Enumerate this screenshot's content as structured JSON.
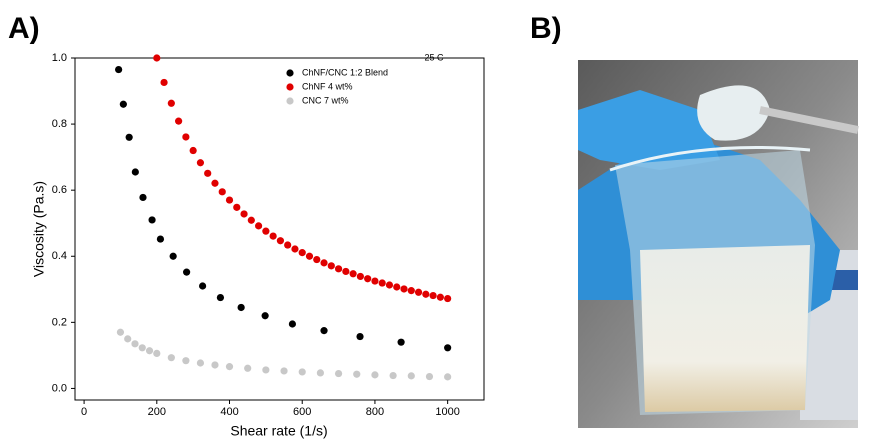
{
  "chart_data": {
    "type": "scatter",
    "panel_label": "A)",
    "photo_label": "B)",
    "x_label": "Shear rate (1/s)",
    "y_label": "Viscosity (Pa.s)",
    "annotation": "25 C",
    "xlim": [
      -25,
      1100
    ],
    "ylim": [
      -0.035,
      1.0
    ],
    "xticks": [
      0,
      200,
      400,
      600,
      800,
      1000
    ],
    "yticks": [
      {
        "value": 0,
        "label": "0.0"
      },
      0.2,
      0.4,
      0.6,
      0.8,
      {
        "value": 1,
        "label": "1.0"
      }
    ],
    "series": [
      {
        "name": "ChNF/CNC 1:2 Blend",
        "color": "#000000",
        "x": [
          95,
          108,
          124,
          141,
          162,
          187,
          210,
          245,
          282,
          326,
          375,
          432,
          498,
          573,
          660,
          759,
          872,
          1000
        ],
        "values": [
          0.965,
          0.86,
          0.76,
          0.655,
          0.578,
          0.51,
          0.452,
          0.4,
          0.352,
          0.31,
          0.275,
          0.245,
          0.22,
          0.195,
          0.175,
          0.157,
          0.14,
          0.123
        ]
      },
      {
        "name": "ChNF 4 wt%",
        "color": "#e00000",
        "x": [
          200,
          220,
          240,
          260,
          280,
          300,
          320,
          340,
          360,
          380,
          400,
          420,
          440,
          460,
          480,
          500,
          520,
          540,
          560,
          580,
          600,
          620,
          640,
          660,
          680,
          700,
          720,
          740,
          760,
          780,
          800,
          820,
          840,
          860,
          880,
          900,
          920,
          940,
          960,
          980,
          1000
        ],
        "values": [
          1.0,
          0.926,
          0.863,
          0.809,
          0.761,
          0.72,
          0.683,
          0.651,
          0.621,
          0.595,
          0.57,
          0.548,
          0.528,
          0.509,
          0.492,
          0.476,
          0.461,
          0.447,
          0.434,
          0.422,
          0.411,
          0.4,
          0.39,
          0.38,
          0.371,
          0.362,
          0.354,
          0.347,
          0.339,
          0.332,
          0.325,
          0.319,
          0.313,
          0.307,
          0.301,
          0.296,
          0.291,
          0.285,
          0.281,
          0.276,
          0.272
        ]
      },
      {
        "name": "CNC 7 wt%",
        "color": "#c8c8c8",
        "x": [
          100,
          120,
          140,
          160,
          180,
          200,
          240,
          280,
          320,
          360,
          400,
          450,
          500,
          550,
          600,
          650,
          700,
          750,
          800,
          850,
          900,
          950,
          1000
        ],
        "values": [
          0.17,
          0.15,
          0.135,
          0.123,
          0.114,
          0.106,
          0.093,
          0.084,
          0.077,
          0.071,
          0.066,
          0.061,
          0.056,
          0.053,
          0.05,
          0.047,
          0.045,
          0.043,
          0.041,
          0.039,
          0.038,
          0.036,
          0.035
        ]
      }
    ]
  }
}
